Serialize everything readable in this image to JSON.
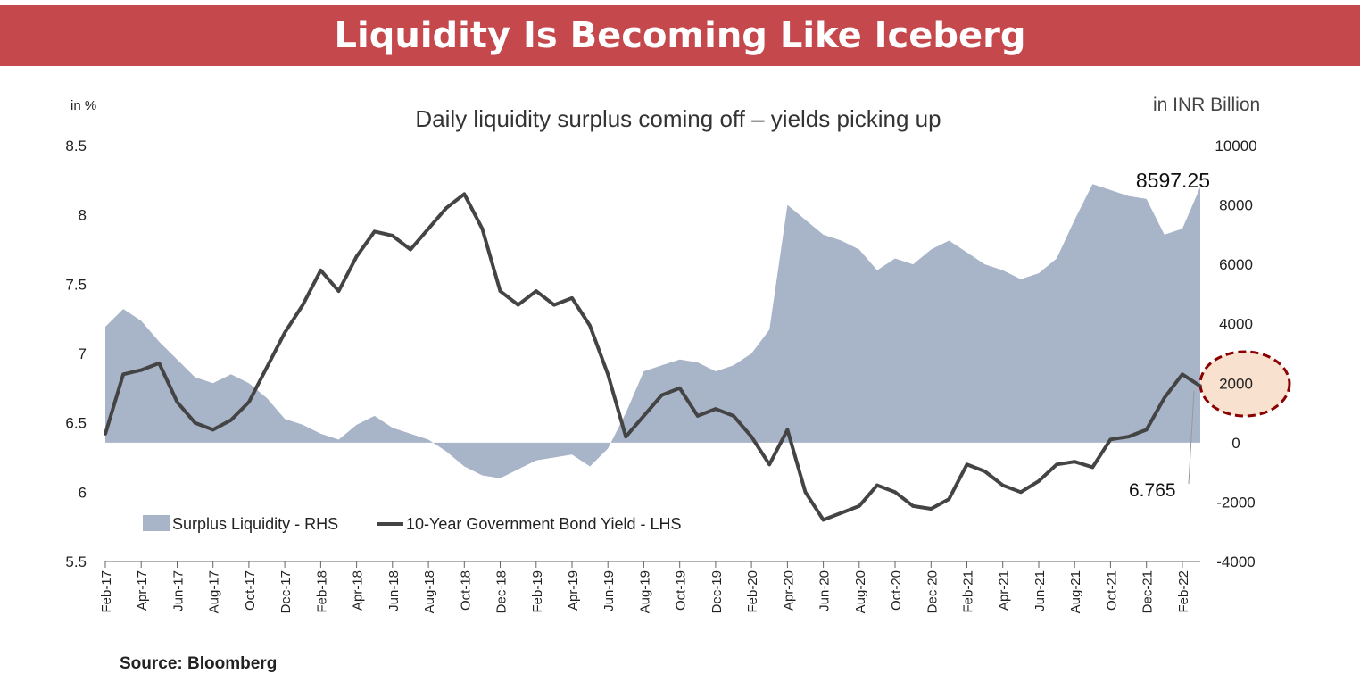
{
  "header": {
    "title": "Liquidity Is Becoming Like Iceberg"
  },
  "source": "Source: Bloomberg",
  "chart_data": {
    "type": "area+line",
    "title": "Daily liquidity surplus coming off – yields picking up",
    "left_axis": {
      "unit_label": "in %",
      "min": 5.5,
      "max": 8.5,
      "ticks": [
        "5.5",
        "6",
        "6.5",
        "7",
        "7.5",
        "8",
        "8.5"
      ]
    },
    "right_axis": {
      "unit_label": "in INR Billion",
      "min": -4000,
      "max": 10000,
      "ticks": [
        "-4000",
        "-2000",
        "0",
        "2000",
        "4000",
        "6000",
        "8000",
        "10000"
      ]
    },
    "x_labels": [
      "Feb-17",
      "Apr-17",
      "Jun-17",
      "Aug-17",
      "Oct-17",
      "Dec-17",
      "Feb-18",
      "Apr-18",
      "Jun-18",
      "Aug-18",
      "Oct-18",
      "Dec-18",
      "Feb-19",
      "Apr-19",
      "Jun-19",
      "Aug-19",
      "Oct-19",
      "Dec-19",
      "Feb-20",
      "Apr-20",
      "Jun-20",
      "Aug-20",
      "Oct-20",
      "Dec-20",
      "Feb-21",
      "Apr-21",
      "Jun-21",
      "Aug-21",
      "Oct-21",
      "Dec-21",
      "Feb-22"
    ],
    "legend": {
      "placement": "bottom-left"
    },
    "annotations": {
      "liquidity_last": "8597.25",
      "yield_last": "6.765"
    },
    "colors": {
      "area": "#a8b4c8",
      "line": "#444444",
      "banner": "#c5484d",
      "highlight_fill": "#f8e1cf",
      "highlight_border": "#8b0000"
    },
    "series": [
      {
        "name": "Surplus Liquidity - RHS",
        "axis": "right",
        "style": "area",
        "x": [
          "2017-02",
          "2017-03",
          "2017-04",
          "2017-05",
          "2017-06",
          "2017-07",
          "2017-08",
          "2017-09",
          "2017-10",
          "2017-11",
          "2017-12",
          "2018-01",
          "2018-02",
          "2018-03",
          "2018-04",
          "2018-05",
          "2018-06",
          "2018-07",
          "2018-08",
          "2018-09",
          "2018-10",
          "2018-11",
          "2018-12",
          "2019-01",
          "2019-02",
          "2019-03",
          "2019-04",
          "2019-05",
          "2019-06",
          "2019-07",
          "2019-08",
          "2019-09",
          "2019-10",
          "2019-11",
          "2019-12",
          "2020-01",
          "2020-02",
          "2020-03",
          "2020-04",
          "2020-05",
          "2020-06",
          "2020-07",
          "2020-08",
          "2020-09",
          "2020-10",
          "2020-11",
          "2020-12",
          "2021-01",
          "2021-02",
          "2021-03",
          "2021-04",
          "2021-05",
          "2021-06",
          "2021-07",
          "2021-08",
          "2021-09",
          "2021-10",
          "2021-11",
          "2021-12",
          "2022-01",
          "2022-02",
          "2022-03"
        ],
        "values": [
          3900,
          4500,
          4100,
          3400,
          2800,
          2200,
          2000,
          2300,
          2000,
          1500,
          800,
          600,
          300,
          100,
          600,
          900,
          500,
          300,
          100,
          -300,
          -800,
          -1100,
          -1200,
          -900,
          -600,
          -500,
          -400,
          -800,
          -200,
          1000,
          2400,
          2600,
          2800,
          2700,
          2400,
          2600,
          3000,
          3800,
          8000,
          7500,
          7000,
          6800,
          6500,
          5800,
          6200,
          6000,
          6500,
          6800,
          6400,
          6000,
          5800,
          5500,
          5700,
          6200,
          7500,
          8700,
          8500,
          8300,
          8200,
          7000,
          7200,
          8600
        ]
      },
      {
        "name": "10-Year Government Bond Yield - LHS",
        "axis": "left",
        "style": "line",
        "x": [
          "2017-02",
          "2017-03",
          "2017-04",
          "2017-05",
          "2017-06",
          "2017-07",
          "2017-08",
          "2017-09",
          "2017-10",
          "2017-11",
          "2017-12",
          "2018-01",
          "2018-02",
          "2018-03",
          "2018-04",
          "2018-05",
          "2018-06",
          "2018-07",
          "2018-08",
          "2018-09",
          "2018-10",
          "2018-11",
          "2018-12",
          "2019-01",
          "2019-02",
          "2019-03",
          "2019-04",
          "2019-05",
          "2019-06",
          "2019-07",
          "2019-08",
          "2019-09",
          "2019-10",
          "2019-11",
          "2019-12",
          "2020-01",
          "2020-02",
          "2020-03",
          "2020-04",
          "2020-05",
          "2020-06",
          "2020-07",
          "2020-08",
          "2020-09",
          "2020-10",
          "2020-11",
          "2020-12",
          "2021-01",
          "2021-02",
          "2021-03",
          "2021-04",
          "2021-05",
          "2021-06",
          "2021-07",
          "2021-08",
          "2021-09",
          "2021-10",
          "2021-11",
          "2021-12",
          "2022-01",
          "2022-02",
          "2022-03"
        ],
        "values": [
          6.42,
          6.85,
          6.88,
          6.93,
          6.65,
          6.5,
          6.45,
          6.52,
          6.65,
          6.9,
          7.15,
          7.35,
          7.6,
          7.45,
          7.7,
          7.88,
          7.85,
          7.75,
          7.9,
          8.05,
          8.15,
          7.9,
          7.45,
          7.35,
          7.45,
          7.35,
          7.4,
          7.2,
          6.85,
          6.4,
          6.55,
          6.7,
          6.75,
          6.55,
          6.6,
          6.55,
          6.4,
          6.2,
          6.45,
          6.0,
          5.8,
          5.85,
          5.9,
          6.05,
          6.0,
          5.9,
          5.88,
          5.95,
          6.2,
          6.15,
          6.05,
          6.0,
          6.08,
          6.2,
          6.22,
          6.18,
          6.38,
          6.4,
          6.45,
          6.68,
          6.85,
          6.765
        ]
      }
    ]
  }
}
